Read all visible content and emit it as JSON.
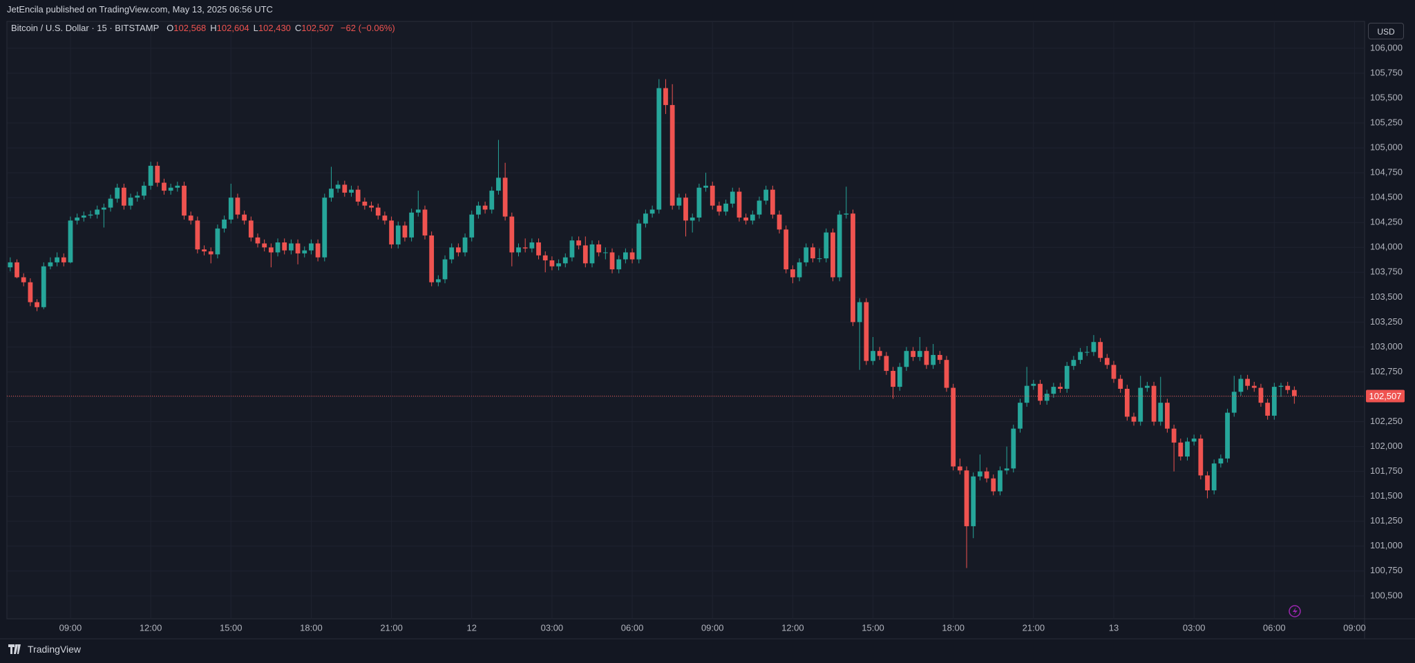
{
  "header": {
    "published": "JetEncila published on TradingView.com, May 13, 2025 06:56 UTC",
    "brand": "TradingView"
  },
  "chart_data": {
    "type": "candlestick",
    "symbol": "Bitcoin / U.S. Dollar · 15 · BITSTAMP",
    "ohlc_display": [
      {
        "label": "O",
        "value": "102,568"
      },
      {
        "label": "H",
        "value": "102,604"
      },
      {
        "label": "L",
        "value": "102,430"
      },
      {
        "label": "C",
        "value": "102,507"
      }
    ],
    "change": "−62 (−0.06%)",
    "currency": "USD",
    "up_color": "#26a69a",
    "down_color": "#ef5350",
    "grid": true,
    "last_price": {
      "value": 102507,
      "label": "102,507"
    },
    "xlim": [
      -0.5,
      202.5
    ],
    "xticks": [
      {
        "value": 9,
        "label": "09:00"
      },
      {
        "value": 21,
        "label": "12:00"
      },
      {
        "value": 33,
        "label": "15:00"
      },
      {
        "value": 45,
        "label": "18:00"
      },
      {
        "value": 57,
        "label": "21:00"
      },
      {
        "value": 69,
        "label": "12"
      },
      {
        "value": 81,
        "label": "03:00"
      },
      {
        "value": 93,
        "label": "06:00"
      },
      {
        "value": 105,
        "label": "09:00"
      },
      {
        "value": 117,
        "label": "12:00"
      },
      {
        "value": 129,
        "label": "15:00"
      },
      {
        "value": 141,
        "label": "18:00"
      },
      {
        "value": 153,
        "label": "21:00"
      },
      {
        "value": 165,
        "label": "13"
      },
      {
        "value": 177,
        "label": "03:00"
      },
      {
        "value": 189,
        "label": "06:00"
      },
      {
        "value": 201,
        "label": "09:00"
      }
    ],
    "ylim": [
      100270,
      106270
    ],
    "yticks": [
      {
        "value": 100500,
        "label": "100,500"
      },
      {
        "value": 100750,
        "label": "100,750"
      },
      {
        "value": 101000,
        "label": "101,000"
      },
      {
        "value": 101250,
        "label": "101,250"
      },
      {
        "value": 101500,
        "label": "101,500"
      },
      {
        "value": 101750,
        "label": "101,750"
      },
      {
        "value": 102000,
        "label": "102,000"
      },
      {
        "value": 102250,
        "label": "102,250"
      },
      {
        "value": 102500,
        "label": "102,500"
      },
      {
        "value": 102750,
        "label": "102,750"
      },
      {
        "value": 103000,
        "label": "103,000"
      },
      {
        "value": 103250,
        "label": "103,250"
      },
      {
        "value": 103500,
        "label": "103,500"
      },
      {
        "value": 103750,
        "label": "103,750"
      },
      {
        "value": 104000,
        "label": "104,000"
      },
      {
        "value": 104250,
        "label": "104,250"
      },
      {
        "value": 104500,
        "label": "104,500"
      },
      {
        "value": 104750,
        "label": "104,750"
      },
      {
        "value": 105000,
        "label": "105,000"
      },
      {
        "value": 105250,
        "label": "105,250"
      },
      {
        "value": 105500,
        "label": "105,500"
      },
      {
        "value": 105750,
        "label": "105,750"
      },
      {
        "value": 106000,
        "label": "106,000"
      }
    ],
    "candles": [
      [
        103800,
        103900,
        103760,
        103850
      ],
      [
        103850,
        103880,
        103690,
        103700
      ],
      [
        103700,
        103740,
        103610,
        103650
      ],
      [
        103650,
        103690,
        103410,
        103450
      ],
      [
        103450,
        103480,
        103360,
        103400
      ],
      [
        103400,
        103850,
        103380,
        103810
      ],
      [
        103810,
        103900,
        103780,
        103850
      ],
      [
        103850,
        103950,
        103810,
        103900
      ],
      [
        103900,
        103940,
        103810,
        103850
      ],
      [
        103850,
        104310,
        103840,
        104270
      ],
      [
        104270,
        104340,
        104230,
        104300
      ],
      [
        104300,
        104360,
        104260,
        104320
      ],
      [
        104320,
        104370,
        104290,
        104330
      ],
      [
        104330,
        104420,
        104290,
        104380
      ],
      [
        104380,
        104440,
        104200,
        104400
      ],
      [
        104400,
        104530,
        104360,
        104490
      ],
      [
        104490,
        104640,
        104450,
        104600
      ],
      [
        104600,
        104640,
        104380,
        104420
      ],
      [
        104420,
        104540,
        104380,
        104500
      ],
      [
        104500,
        104560,
        104460,
        104520
      ],
      [
        104520,
        104660,
        104480,
        104620
      ],
      [
        104620,
        104860,
        104580,
        104820
      ],
      [
        104820,
        104860,
        104610,
        104650
      ],
      [
        104650,
        104690,
        104530,
        104570
      ],
      [
        104570,
        104640,
        104530,
        104600
      ],
      [
        104600,
        104660,
        104560,
        104620
      ],
      [
        104620,
        104660,
        104280,
        104320
      ],
      [
        104320,
        104360,
        104230,
        104270
      ],
      [
        104270,
        104310,
        103940,
        103980
      ],
      [
        103980,
        104020,
        103920,
        103960
      ],
      [
        103960,
        104000,
        103840,
        103930
      ],
      [
        103930,
        104230,
        103890,
        104190
      ],
      [
        104190,
        104320,
        104150,
        104280
      ],
      [
        104280,
        104640,
        104240,
        104500
      ],
      [
        104500,
        104540,
        104290,
        104330
      ],
      [
        104330,
        104370,
        104230,
        104270
      ],
      [
        104270,
        104310,
        104060,
        104100
      ],
      [
        104100,
        104140,
        104000,
        104040
      ],
      [
        104040,
        104080,
        103960,
        104000
      ],
      [
        104000,
        104040,
        103800,
        103950
      ],
      [
        103950,
        104090,
        103910,
        104050
      ],
      [
        104050,
        104090,
        103930,
        103970
      ],
      [
        103970,
        104080,
        103930,
        104040
      ],
      [
        104040,
        104080,
        103830,
        103940
      ],
      [
        103940,
        104010,
        103900,
        103970
      ],
      [
        103970,
        104080,
        103930,
        104040
      ],
      [
        104040,
        104080,
        103860,
        103900
      ],
      [
        103900,
        104540,
        103860,
        104500
      ],
      [
        104500,
        104810,
        104460,
        104590
      ],
      [
        104590,
        104670,
        104550,
        104630
      ],
      [
        104630,
        104670,
        104510,
        104550
      ],
      [
        104550,
        104620,
        104510,
        104580
      ],
      [
        104580,
        104620,
        104420,
        104460
      ],
      [
        104460,
        104500,
        104380,
        104420
      ],
      [
        104420,
        104460,
        104360,
        104400
      ],
      [
        104400,
        104440,
        104280,
        104320
      ],
      [
        104320,
        104360,
        104230,
        104270
      ],
      [
        104270,
        104310,
        103990,
        104030
      ],
      [
        104030,
        104260,
        103990,
        104220
      ],
      [
        104220,
        104260,
        104060,
        104100
      ],
      [
        104100,
        104390,
        104060,
        104350
      ],
      [
        104350,
        104570,
        104310,
        104380
      ],
      [
        104380,
        104420,
        104080,
        104120
      ],
      [
        104120,
        104160,
        103610,
        103650
      ],
      [
        103650,
        103720,
        103610,
        103680
      ],
      [
        103680,
        103920,
        103640,
        103880
      ],
      [
        103880,
        104040,
        103840,
        104000
      ],
      [
        104000,
        104040,
        103910,
        103950
      ],
      [
        103950,
        104140,
        103910,
        104100
      ],
      [
        104100,
        104370,
        104060,
        104330
      ],
      [
        104330,
        104460,
        104290,
        104420
      ],
      [
        104420,
        104460,
        104340,
        104380
      ],
      [
        104380,
        104610,
        104340,
        104570
      ],
      [
        104570,
        105080,
        104530,
        104700
      ],
      [
        104700,
        104850,
        104270,
        104310
      ],
      [
        104310,
        104350,
        103810,
        103950
      ],
      [
        103950,
        104040,
        103910,
        104000
      ],
      [
        104000,
        104090,
        103950,
        103990
      ],
      [
        103990,
        104090,
        103950,
        104050
      ],
      [
        104050,
        104090,
        103880,
        103920
      ],
      [
        103920,
        103960,
        103750,
        103870
      ],
      [
        103870,
        103910,
        103770,
        103810
      ],
      [
        103810,
        103880,
        103770,
        103840
      ],
      [
        103840,
        103940,
        103800,
        103900
      ],
      [
        103900,
        104110,
        103860,
        104070
      ],
      [
        104070,
        104110,
        103980,
        104020
      ],
      [
        104020,
        104110,
        103800,
        103840
      ],
      [
        103840,
        104070,
        103800,
        104030
      ],
      [
        104030,
        104070,
        103910,
        103950
      ],
      [
        103950,
        104000,
        103880,
        103950
      ],
      [
        103950,
        103990,
        103740,
        103780
      ],
      [
        103780,
        103920,
        103740,
        103880
      ],
      [
        103880,
        103990,
        103840,
        103950
      ],
      [
        103950,
        103990,
        103840,
        103880
      ],
      [
        103880,
        104280,
        103840,
        104240
      ],
      [
        104240,
        104380,
        104200,
        104340
      ],
      [
        104340,
        104420,
        104300,
        104380
      ],
      [
        104380,
        105690,
        104340,
        105600
      ],
      [
        105600,
        105690,
        105340,
        105430
      ],
      [
        105430,
        105640,
        104380,
        104420
      ],
      [
        104420,
        104540,
        104380,
        104500
      ],
      [
        104500,
        104540,
        104110,
        104270
      ],
      [
        104270,
        104340,
        104150,
        104300
      ],
      [
        104300,
        104640,
        104260,
        104600
      ],
      [
        104600,
        104750,
        104560,
        104620
      ],
      [
        104620,
        104660,
        104380,
        104420
      ],
      [
        104420,
        104460,
        104320,
        104360
      ],
      [
        104360,
        104480,
        104320,
        104440
      ],
      [
        104440,
        104600,
        104400,
        104560
      ],
      [
        104560,
        104600,
        104260,
        104300
      ],
      [
        104300,
        104340,
        104230,
        104270
      ],
      [
        104270,
        104370,
        104230,
        104330
      ],
      [
        104330,
        104510,
        104290,
        104470
      ],
      [
        104470,
        104620,
        104430,
        104580
      ],
      [
        104580,
        104620,
        104290,
        104330
      ],
      [
        104330,
        104370,
        104140,
        104180
      ],
      [
        104180,
        104220,
        103740,
        103780
      ],
      [
        103780,
        103820,
        103640,
        103700
      ],
      [
        103700,
        103890,
        103660,
        103850
      ],
      [
        103850,
        104040,
        103810,
        104000
      ],
      [
        104000,
        104040,
        103850,
        103890
      ],
      [
        103890,
        103990,
        103850,
        103890
      ],
      [
        103890,
        104190,
        103850,
        104150
      ],
      [
        104150,
        104190,
        103660,
        103700
      ],
      [
        103700,
        104370,
        103660,
        104330
      ],
      [
        104330,
        104610,
        104290,
        104340
      ],
      [
        104340,
        104380,
        103210,
        103250
      ],
      [
        103250,
        103490,
        102770,
        103450
      ],
      [
        103450,
        103490,
        102820,
        102860
      ],
      [
        102860,
        103100,
        102820,
        102960
      ],
      [
        102960,
        103000,
        102870,
        102910
      ],
      [
        102910,
        102950,
        102720,
        102760
      ],
      [
        102760,
        102800,
        102480,
        102600
      ],
      [
        102600,
        102840,
        102560,
        102800
      ],
      [
        102800,
        103000,
        102760,
        102960
      ],
      [
        102960,
        103000,
        102860,
        102900
      ],
      [
        102900,
        103100,
        102860,
        102960
      ],
      [
        102960,
        103000,
        102780,
        102820
      ],
      [
        102820,
        103030,
        102780,
        102920
      ],
      [
        102920,
        102960,
        102830,
        102870
      ],
      [
        102870,
        102910,
        102550,
        102590
      ],
      [
        102590,
        102630,
        101760,
        101800
      ],
      [
        101800,
        101880,
        101720,
        101760
      ],
      [
        101760,
        101800,
        100780,
        101200
      ],
      [
        101200,
        101740,
        101080,
        101700
      ],
      [
        101700,
        101920,
        101660,
        101750
      ],
      [
        101750,
        101790,
        101640,
        101680
      ],
      [
        101680,
        101720,
        101510,
        101550
      ],
      [
        101550,
        101800,
        101510,
        101760
      ],
      [
        101760,
        102000,
        101720,
        101780
      ],
      [
        101780,
        102220,
        101740,
        102180
      ],
      [
        102180,
        102480,
        102140,
        102440
      ],
      [
        102440,
        102800,
        102400,
        102610
      ],
      [
        102610,
        102670,
        102570,
        102630
      ],
      [
        102630,
        102670,
        102420,
        102460
      ],
      [
        102460,
        102570,
        102420,
        102530
      ],
      [
        102530,
        102640,
        102490,
        102600
      ],
      [
        102600,
        102640,
        102540,
        102580
      ],
      [
        102580,
        102850,
        102540,
        102810
      ],
      [
        102810,
        102910,
        102770,
        102870
      ],
      [
        102870,
        102990,
        102830,
        102950
      ],
      [
        102950,
        103010,
        102910,
        102950
      ],
      [
        102950,
        103120,
        102910,
        103050
      ],
      [
        103050,
        103090,
        102850,
        102890
      ],
      [
        102890,
        102930,
        102780,
        102820
      ],
      [
        102820,
        102860,
        102640,
        102680
      ],
      [
        102680,
        102720,
        102540,
        102580
      ],
      [
        102580,
        102620,
        102260,
        102300
      ],
      [
        102300,
        102340,
        102210,
        102250
      ],
      [
        102250,
        102710,
        102210,
        102590
      ],
      [
        102590,
        102650,
        102550,
        102610
      ],
      [
        102610,
        102650,
        102210,
        102250
      ],
      [
        102250,
        102700,
        102210,
        102440
      ],
      [
        102440,
        102480,
        102140,
        102180
      ],
      [
        102180,
        102220,
        101750,
        102040
      ],
      [
        102040,
        102080,
        101860,
        101900
      ],
      [
        101900,
        102090,
        101860,
        102050
      ],
      [
        102050,
        102120,
        102010,
        102080
      ],
      [
        102080,
        102120,
        101670,
        101710
      ],
      [
        101710,
        101750,
        101480,
        101560
      ],
      [
        101560,
        101870,
        101520,
        101830
      ],
      [
        101830,
        101920,
        101790,
        101880
      ],
      [
        101880,
        102380,
        101840,
        102340
      ],
      [
        102340,
        102710,
        102300,
        102550
      ],
      [
        102550,
        102720,
        102510,
        102680
      ],
      [
        102680,
        102720,
        102570,
        102610
      ],
      [
        102610,
        102650,
        102550,
        102590
      ],
      [
        102590,
        102630,
        102400,
        102440
      ],
      [
        102440,
        102480,
        102270,
        102310
      ],
      [
        102310,
        102640,
        102270,
        102600
      ],
      [
        102600,
        102640,
        102500,
        102610
      ],
      [
        102610,
        102650,
        102530,
        102568
      ],
      [
        102568,
        102604,
        102430,
        102507
      ]
    ]
  }
}
